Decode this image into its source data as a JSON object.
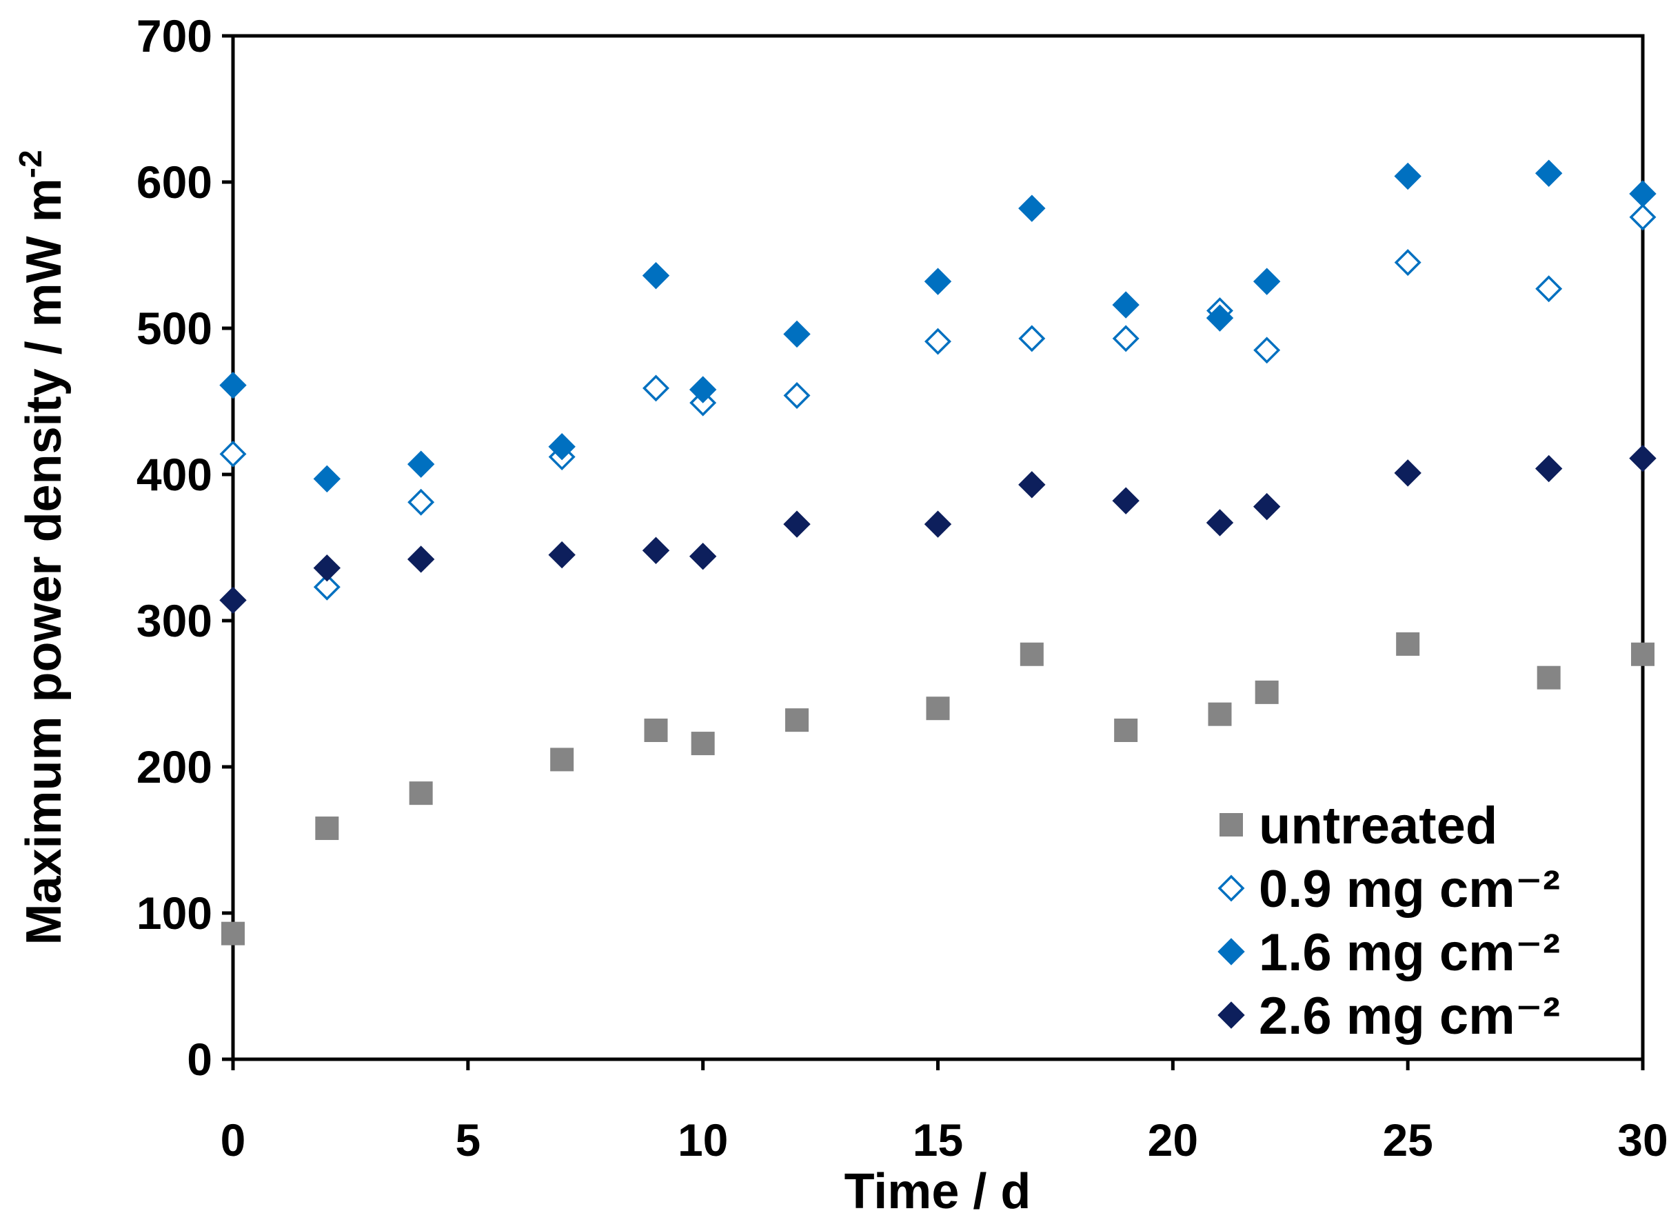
{
  "chart_data": {
    "type": "scatter",
    "title": "",
    "xlabel": "Time / d",
    "ylabel_main": "Maximum power density / mW m",
    "ylabel_sup": "-2",
    "xlim": [
      0,
      30
    ],
    "ylim": [
      0,
      700
    ],
    "x_ticks": [
      0,
      5,
      10,
      15,
      20,
      25,
      30
    ],
    "y_ticks": [
      0,
      100,
      200,
      300,
      400,
      500,
      600,
      700
    ],
    "grid": false,
    "legend_position": "bottom-right",
    "series": [
      {
        "name": "untreated",
        "marker": "square",
        "color": "#858585",
        "filled": true,
        "x": [
          0,
          2,
          4,
          7,
          9,
          10,
          12,
          15,
          17,
          19,
          21,
          22,
          25,
          28,
          30
        ],
        "y": [
          86,
          158,
          182,
          205,
          225,
          216,
          232,
          240,
          277,
          225,
          236,
          251,
          284,
          261,
          277
        ]
      },
      {
        "name": "0.9 mg cm⁻²",
        "marker": "diamond",
        "color": "#0070c0",
        "filled": false,
        "x": [
          0,
          2,
          4,
          7,
          9,
          10,
          12,
          15,
          17,
          19,
          21,
          22,
          25,
          28,
          30
        ],
        "y": [
          414,
          323,
          381,
          412,
          459,
          449,
          454,
          491,
          493,
          493,
          512,
          485,
          545,
          527,
          576
        ]
      },
      {
        "name": "1.6 mg cm⁻²",
        "marker": "diamond",
        "color": "#0070c0",
        "filled": true,
        "x": [
          0,
          2,
          4,
          7,
          9,
          10,
          12,
          15,
          17,
          19,
          21,
          22,
          25,
          28,
          30
        ],
        "y": [
          461,
          397,
          407,
          419,
          536,
          458,
          496,
          532,
          582,
          516,
          507,
          532,
          604,
          606,
          592
        ]
      },
      {
        "name": "2.6 mg cm⁻²",
        "marker": "diamond",
        "color": "#0d1f5c",
        "filled": true,
        "x": [
          0,
          2,
          4,
          7,
          9,
          10,
          12,
          15,
          17,
          19,
          21,
          22,
          25,
          28,
          30
        ],
        "y": [
          314,
          336,
          342,
          345,
          348,
          344,
          366,
          366,
          393,
          382,
          367,
          378,
          401,
          404,
          411
        ]
      }
    ]
  }
}
